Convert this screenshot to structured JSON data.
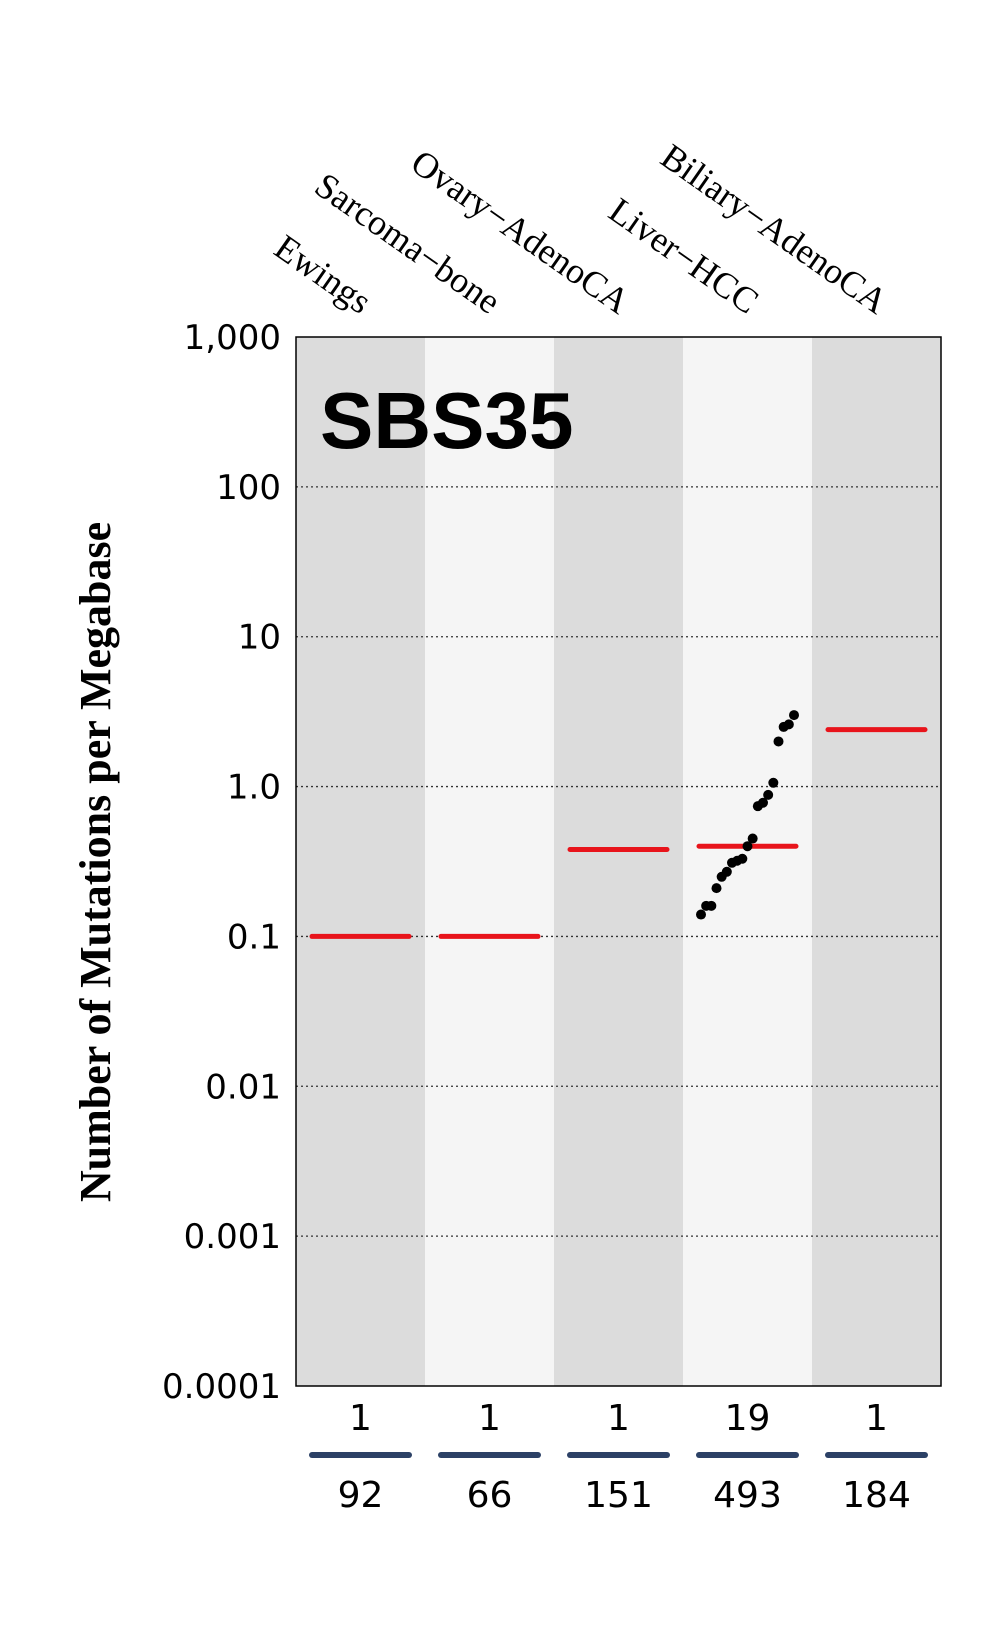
{
  "chart_data": {
    "type": "scatter",
    "title": "SBS35",
    "ylabel": "Number of Mutations per Megabase",
    "xlabel": "",
    "yscale": "log",
    "ylim": [
      0.0001,
      1000
    ],
    "yticks": [
      0.0001,
      0.001,
      0.01,
      0.1,
      1.0,
      10,
      100,
      1000
    ],
    "ytick_labels": [
      "0.0001",
      "0.001",
      "0.01",
      "0.1",
      "1.0",
      "10",
      "100",
      "1,000"
    ],
    "grid": "horizontal dotted",
    "categories": [
      "Ewings",
      "Sarcoma−bone",
      "Ovary−AdenoCA",
      "Liver−HCC",
      "Biliary−AdenoCA"
    ],
    "median_color": "#e8141b",
    "point_color": "#000000",
    "band_colors": [
      "#dcdcdc",
      "#f5f5f5"
    ],
    "count_bar_color": "#2c4166",
    "groups": [
      {
        "name": "Ewings",
        "samples_with_signature": "1",
        "total_samples": "92",
        "median": 0.1,
        "points": []
      },
      {
        "name": "Sarcoma−bone",
        "samples_with_signature": "1",
        "total_samples": "66",
        "median": 0.1,
        "points": []
      },
      {
        "name": "Ovary−AdenoCA",
        "samples_with_signature": "1",
        "total_samples": "151",
        "median": 0.38,
        "points": []
      },
      {
        "name": "Liver−HCC",
        "samples_with_signature": "19",
        "total_samples": "493",
        "median": 0.4,
        "points": [
          0.14,
          0.16,
          0.16,
          0.21,
          0.25,
          0.27,
          0.31,
          0.32,
          0.33,
          0.4,
          0.45,
          0.74,
          0.78,
          0.88,
          1.06,
          2.0,
          2.5,
          2.6,
          3.0
        ]
      },
      {
        "name": "Biliary−AdenoCA",
        "samples_with_signature": "1",
        "total_samples": "184",
        "median": 2.4,
        "points": []
      }
    ]
  }
}
